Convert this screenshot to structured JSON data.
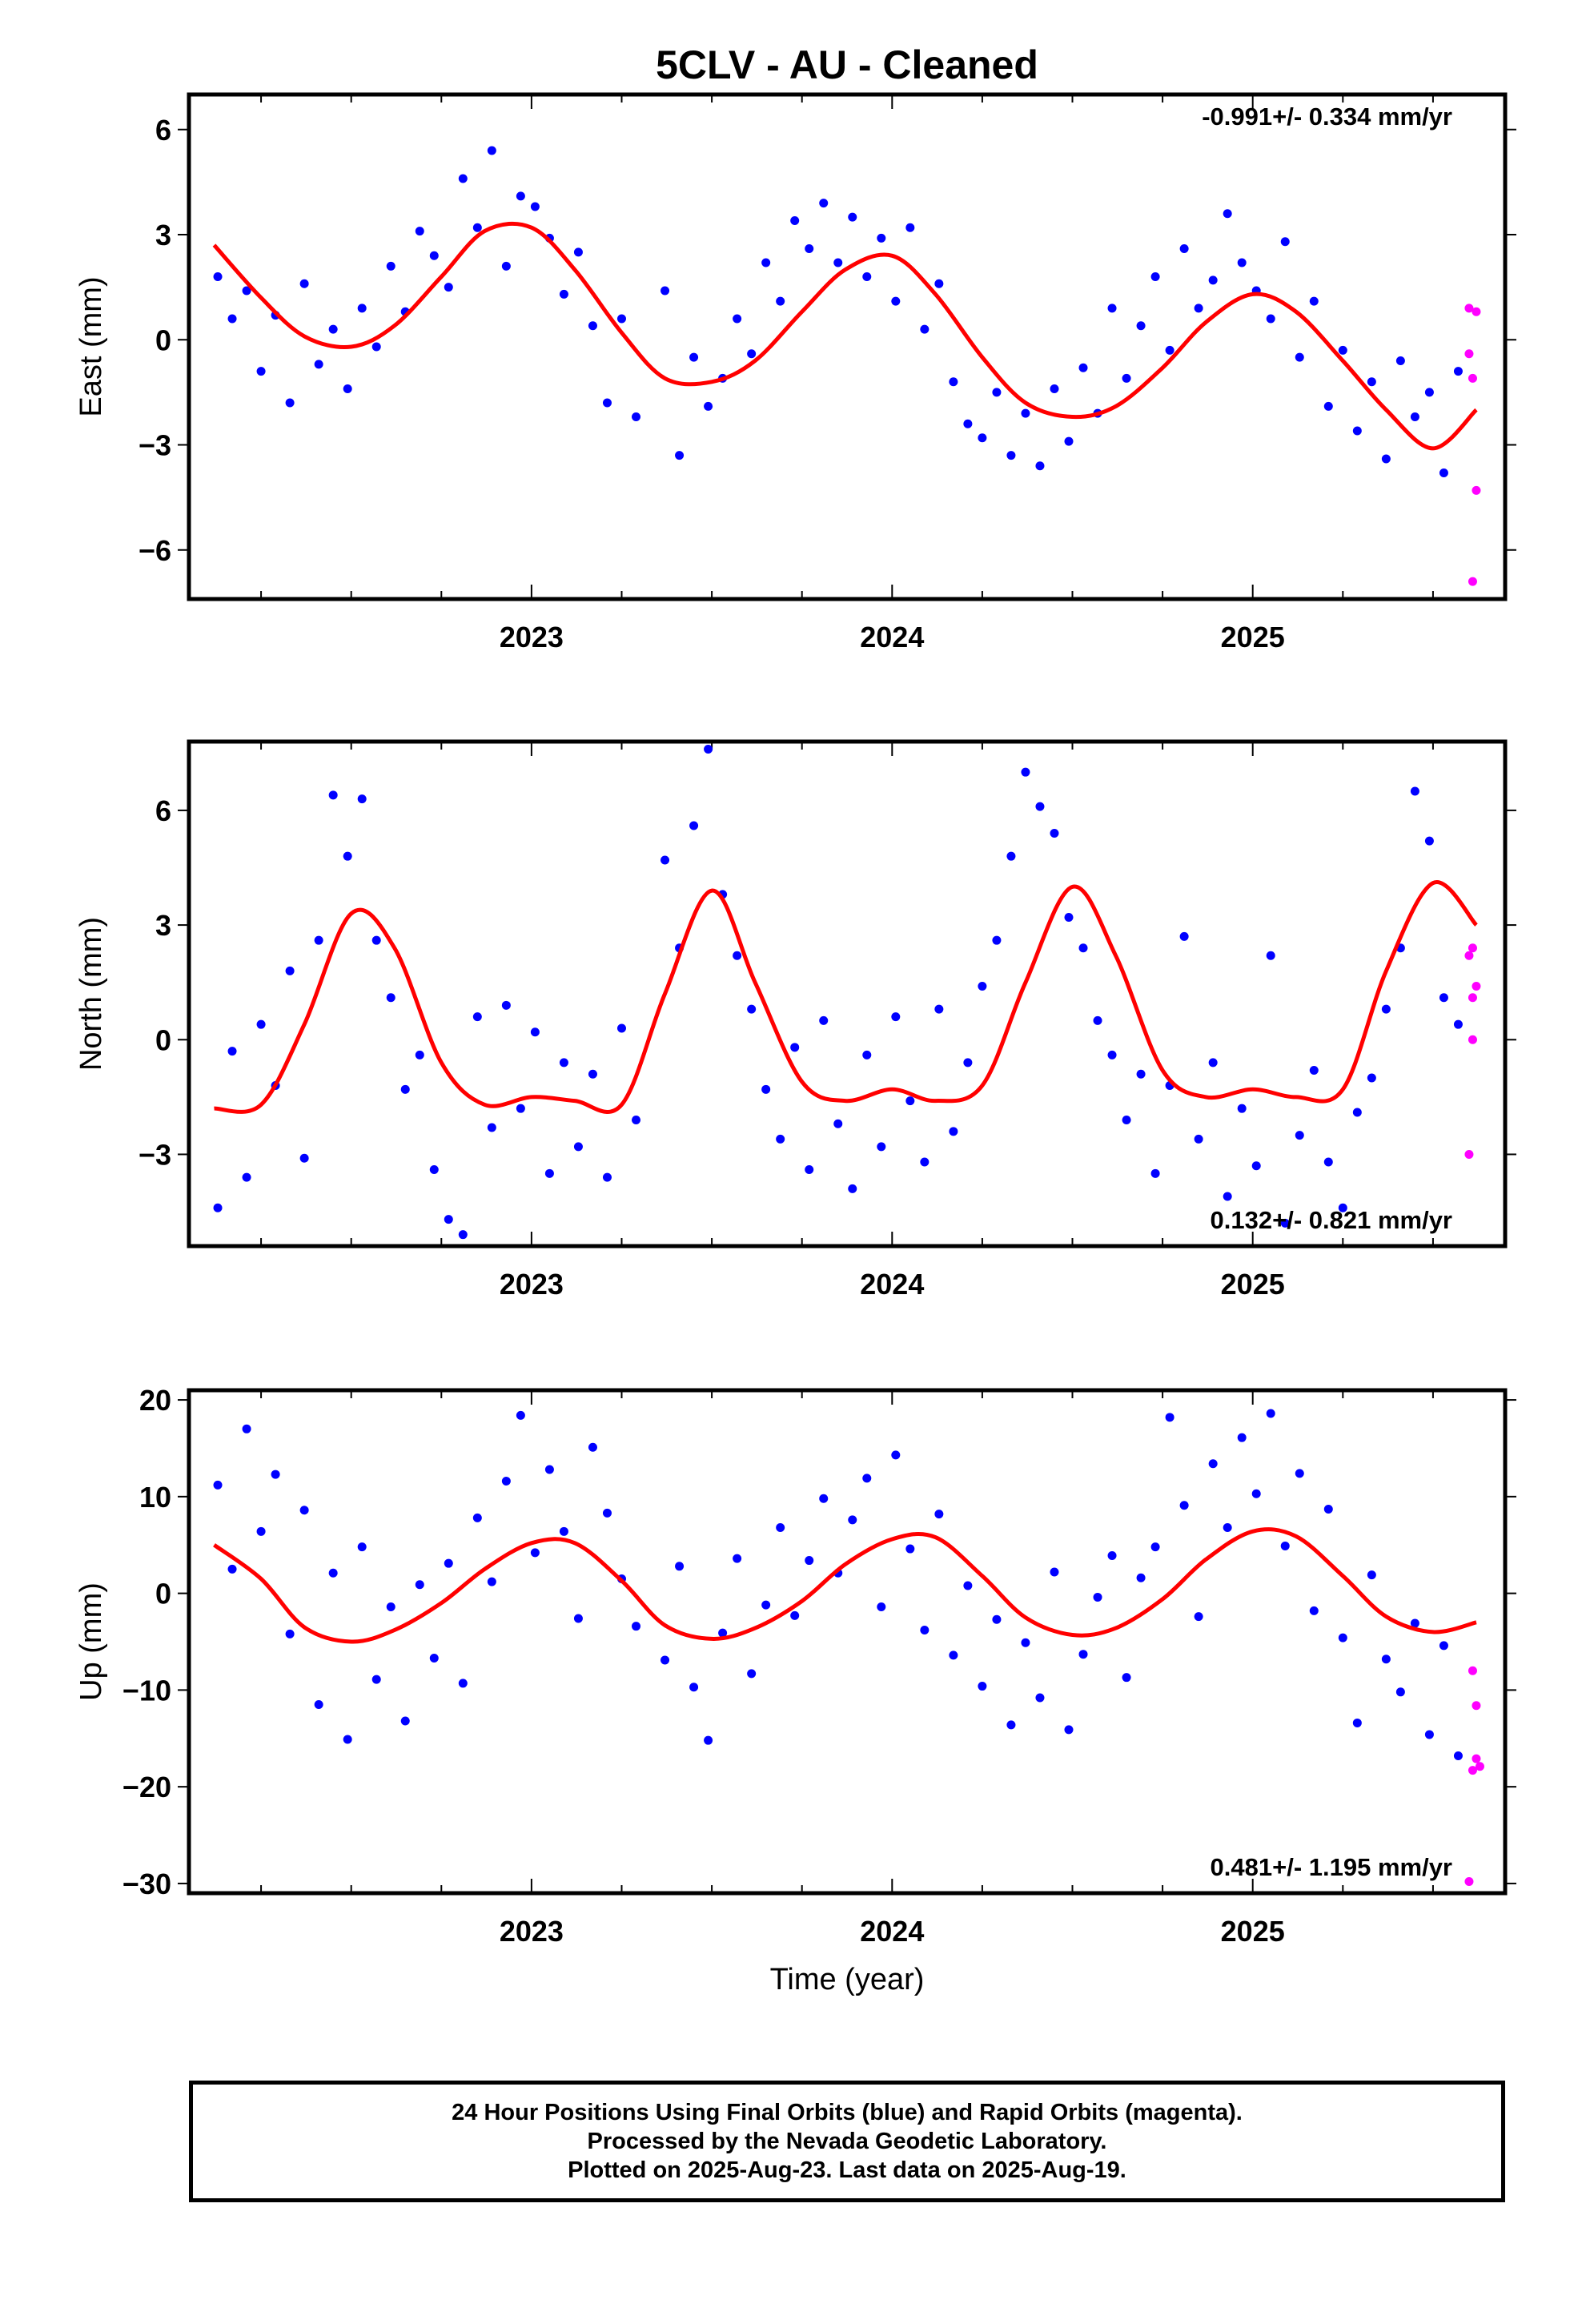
{
  "title": "5CLV  - AU - Cleaned",
  "xlabel": "Time (year)",
  "footer": [
    "24 Hour Positions Using Final Orbits (blue) and Rapid Orbits (magenta).",
    "Processed by the Nevada Geodetic Laboratory.",
    "Plotted on 2025-Aug-23. Last data on 2025-Aug-19."
  ],
  "colors": {
    "final": "#0000ff",
    "rapid": "#ff00ff",
    "fit": "#ff0000",
    "axis": "#000000"
  },
  "chart_data": [
    {
      "type": "scatter",
      "ylabel": "East (mm)",
      "xlim": [
        2022.05,
        2025.7
      ],
      "ylim": [
        -7.4,
        7.0
      ],
      "xticks": [
        2023,
        2024,
        2025
      ],
      "yticks": [
        -6,
        -3,
        0,
        3,
        6
      ],
      "rate_text": "-0.991+/- 0.334 mm/yr",
      "fit": {
        "x": [
          2022.12,
          2022.25,
          2022.37,
          2022.5,
          2022.62,
          2022.75,
          2022.87,
          2023.0,
          2023.12,
          2023.25,
          2023.37,
          2023.5,
          2023.62,
          2023.75,
          2023.87,
          2024.0,
          2024.12,
          2024.25,
          2024.37,
          2024.5,
          2024.62,
          2024.75,
          2024.87,
          2025.0,
          2025.12,
          2025.25,
          2025.37,
          2025.5,
          2025.62
        ],
        "y": [
          2.7,
          1.2,
          0.1,
          -0.2,
          0.4,
          1.8,
          3.1,
          3.2,
          2.0,
          0.2,
          -1.1,
          -1.2,
          -0.6,
          0.8,
          2.0,
          2.4,
          1.3,
          -0.5,
          -1.8,
          -2.2,
          -1.9,
          -0.8,
          0.5,
          1.3,
          0.8,
          -0.6,
          -2.0,
          -3.1,
          -2.0
        ]
      },
      "final": {
        "x": [
          2022.13,
          2022.17,
          2022.21,
          2022.25,
          2022.29,
          2022.33,
          2022.37,
          2022.41,
          2022.45,
          2022.49,
          2022.53,
          2022.57,
          2022.61,
          2022.65,
          2022.69,
          2022.73,
          2022.77,
          2022.81,
          2022.85,
          2022.89,
          2022.93,
          2022.97,
          2023.01,
          2023.05,
          2023.09,
          2023.13,
          2023.17,
          2023.21,
          2023.25,
          2023.29,
          2023.37,
          2023.41,
          2023.45,
          2023.49,
          2023.53,
          2023.57,
          2023.61,
          2023.65,
          2023.69,
          2023.73,
          2023.77,
          2023.81,
          2023.85,
          2023.89,
          2023.93,
          2023.97,
          2024.01,
          2024.05,
          2024.09,
          2024.13,
          2024.17,
          2024.21,
          2024.25,
          2024.29,
          2024.33,
          2024.37,
          2024.41,
          2024.45,
          2024.49,
          2024.53,
          2024.57,
          2024.61,
          2024.65,
          2024.69,
          2024.73,
          2024.77,
          2024.81,
          2024.85,
          2024.89,
          2024.93,
          2024.97,
          2025.01,
          2025.05,
          2025.09,
          2025.13,
          2025.17,
          2025.21,
          2025.25,
          2025.29,
          2025.33,
          2025.37,
          2025.41,
          2025.45,
          2025.49,
          2025.53,
          2025.57
        ],
        "y": [
          1.8,
          0.6,
          1.4,
          -0.9,
          0.7,
          -1.8,
          1.6,
          -0.7,
          0.3,
          -1.4,
          0.9,
          -0.2,
          2.1,
          0.8,
          3.1,
          2.4,
          1.5,
          4.6,
          3.2,
          5.4,
          2.1,
          4.1,
          3.8,
          2.9,
          1.3,
          2.5,
          0.4,
          -1.8,
          0.6,
          -2.2,
          1.4,
          -3.3,
          -0.5,
          -1.9,
          -1.1,
          0.6,
          -0.4,
          2.2,
          1.1,
          3.4,
          2.6,
          3.9,
          2.2,
          3.5,
          1.8,
          2.9,
          1.1,
          3.2,
          0.3,
          1.6,
          -1.2,
          -2.4,
          -2.8,
          -1.5,
          -3.3,
          -2.1,
          -3.6,
          -1.4,
          -2.9,
          -0.8,
          -2.1,
          0.9,
          -1.1,
          0.4,
          1.8,
          -0.3,
          2.6,
          0.9,
          1.7,
          3.6,
          2.2,
          1.4,
          0.6,
          2.8,
          -0.5,
          1.1,
          -1.9,
          -0.3,
          -2.6,
          -1.2,
          -3.4,
          -0.6,
          -2.2,
          -1.5,
          -3.8,
          -0.9
        ]
      },
      "rapid": {
        "x": [
          2025.6,
          2025.6,
          2025.61,
          2025.62,
          2025.61,
          2025.62
        ],
        "y": [
          0.9,
          -0.4,
          -1.1,
          -4.3,
          -6.9,
          0.8
        ]
      }
    },
    {
      "type": "scatter",
      "ylabel": "North (mm)",
      "xlim": [
        2022.05,
        2025.7
      ],
      "ylim": [
        -5.4,
        7.8
      ],
      "xticks": [
        2023,
        2024,
        2025
      ],
      "yticks": [
        -3,
        0,
        3,
        6
      ],
      "rate_text": "0.132+/- 0.821 mm/yr",
      "fit": {
        "x": [
          2022.12,
          2022.25,
          2022.37,
          2022.5,
          2022.62,
          2022.75,
          2022.87,
          2023.0,
          2023.12,
          2023.25,
          2023.37,
          2023.5,
          2023.62,
          2023.75,
          2023.87,
          2024.0,
          2024.12,
          2024.25,
          2024.37,
          2024.5,
          2024.62,
          2024.75,
          2024.87,
          2025.0,
          2025.12,
          2025.25,
          2025.37,
          2025.5,
          2025.62
        ],
        "y": [
          -1.8,
          -1.7,
          0.4,
          3.3,
          2.4,
          -0.6,
          -1.7,
          -1.5,
          -1.6,
          -1.7,
          1.2,
          3.9,
          1.5,
          -1.1,
          -1.6,
          -1.3,
          -1.6,
          -1.2,
          1.5,
          4.0,
          2.2,
          -0.8,
          -1.5,
          -1.3,
          -1.5,
          -1.3,
          1.8,
          4.1,
          3.0
        ]
      },
      "final": {
        "x": [
          2022.13,
          2022.17,
          2022.21,
          2022.25,
          2022.29,
          2022.33,
          2022.37,
          2022.41,
          2022.45,
          2022.49,
          2022.53,
          2022.57,
          2022.61,
          2022.65,
          2022.69,
          2022.73,
          2022.77,
          2022.81,
          2022.85,
          2022.89,
          2022.93,
          2022.97,
          2023.01,
          2023.05,
          2023.09,
          2023.13,
          2023.17,
          2023.21,
          2023.25,
          2023.29,
          2023.37,
          2023.41,
          2023.45,
          2023.49,
          2023.53,
          2023.57,
          2023.61,
          2023.65,
          2023.69,
          2023.73,
          2023.77,
          2023.81,
          2023.85,
          2023.89,
          2023.93,
          2023.97,
          2024.01,
          2024.05,
          2024.09,
          2024.13,
          2024.17,
          2024.21,
          2024.25,
          2024.29,
          2024.33,
          2024.37,
          2024.41,
          2024.45,
          2024.49,
          2024.53,
          2024.57,
          2024.61,
          2024.65,
          2024.69,
          2024.73,
          2024.77,
          2024.81,
          2024.85,
          2024.89,
          2024.93,
          2024.97,
          2025.01,
          2025.05,
          2025.09,
          2025.13,
          2025.17,
          2025.21,
          2025.25,
          2025.29,
          2025.33,
          2025.37,
          2025.41,
          2025.45,
          2025.49,
          2025.53,
          2025.57
        ],
        "y": [
          -4.4,
          -0.3,
          -3.6,
          0.4,
          -1.2,
          1.8,
          -3.1,
          2.6,
          6.4,
          4.8,
          6.3,
          2.6,
          1.1,
          -1.3,
          -0.4,
          -3.4,
          -4.7,
          -5.1,
          0.6,
          -2.3,
          0.9,
          -1.8,
          0.2,
          -3.5,
          -0.6,
          -2.8,
          -0.9,
          -3.6,
          0.3,
          -2.1,
          4.7,
          2.4,
          5.6,
          7.6,
          3.8,
          2.2,
          0.8,
          -1.3,
          -2.6,
          -0.2,
          -3.4,
          0.5,
          -2.2,
          -3.9,
          -0.4,
          -2.8,
          0.6,
          -1.6,
          -3.2,
          0.8,
          -2.4,
          -0.6,
          1.4,
          2.6,
          4.8,
          7.0,
          6.1,
          5.4,
          3.2,
          2.4,
          0.5,
          -0.4,
          -2.1,
          -0.9,
          -3.5,
          -1.2,
          2.7,
          -2.6,
          -0.6,
          -4.1,
          -1.8,
          -3.3,
          2.2,
          -4.8,
          -2.5,
          -0.8,
          -3.2,
          -4.4,
          -1.9,
          -1.0,
          0.8,
          2.4,
          6.5,
          5.2,
          1.1,
          0.4
        ]
      },
      "rapid": {
        "x": [
          2025.6,
          2025.61,
          2025.61,
          2025.6,
          2025.61,
          2025.62
        ],
        "y": [
          2.2,
          1.1,
          0.0,
          -3.0,
          2.4,
          1.4
        ]
      }
    },
    {
      "type": "scatter",
      "ylabel": "Up (mm)",
      "xlim": [
        2022.05,
        2025.7
      ],
      "ylim": [
        -31,
        21
      ],
      "xticks": [
        2023,
        2024,
        2025
      ],
      "yticks": [
        -30,
        -20,
        -10,
        0,
        10,
        20
      ],
      "rate_text": "0.481+/- 1.195 mm/yr",
      "fit": {
        "x": [
          2022.12,
          2022.25,
          2022.37,
          2022.5,
          2022.62,
          2022.75,
          2022.87,
          2023.0,
          2023.12,
          2023.25,
          2023.37,
          2023.5,
          2023.62,
          2023.75,
          2023.87,
          2024.0,
          2024.12,
          2024.25,
          2024.37,
          2024.5,
          2024.62,
          2024.75,
          2024.87,
          2025.0,
          2025.12,
          2025.25,
          2025.37,
          2025.5,
          2025.62
        ],
        "y": [
          5.0,
          1.5,
          -3.5,
          -5.0,
          -3.8,
          -1.0,
          2.5,
          5.2,
          5.2,
          1.3,
          -3.3,
          -4.7,
          -3.6,
          -0.8,
          3.0,
          5.6,
          5.8,
          1.8,
          -2.5,
          -4.3,
          -3.6,
          -0.6,
          3.5,
          6.4,
          5.9,
          1.8,
          -2.4,
          -4.0,
          -3.0
        ]
      },
      "final": {
        "x": [
          2022.13,
          2022.17,
          2022.21,
          2022.25,
          2022.29,
          2022.33,
          2022.37,
          2022.41,
          2022.45,
          2022.49,
          2022.53,
          2022.57,
          2022.61,
          2022.65,
          2022.69,
          2022.73,
          2022.77,
          2022.81,
          2022.85,
          2022.89,
          2022.93,
          2022.97,
          2023.01,
          2023.05,
          2023.09,
          2023.13,
          2023.17,
          2023.21,
          2023.25,
          2023.29,
          2023.37,
          2023.41,
          2023.45,
          2023.49,
          2023.53,
          2023.57,
          2023.61,
          2023.65,
          2023.69,
          2023.73,
          2023.77,
          2023.81,
          2023.85,
          2023.89,
          2023.93,
          2023.97,
          2024.01,
          2024.05,
          2024.09,
          2024.13,
          2024.17,
          2024.21,
          2024.25,
          2024.29,
          2024.33,
          2024.37,
          2024.41,
          2024.45,
          2024.49,
          2024.53,
          2024.57,
          2024.61,
          2024.65,
          2024.69,
          2024.73,
          2024.77,
          2024.81,
          2024.85,
          2024.89,
          2024.93,
          2024.97,
          2025.01,
          2025.05,
          2025.09,
          2025.13,
          2025.17,
          2025.21,
          2025.25,
          2025.29,
          2025.33,
          2025.37,
          2025.41,
          2025.45,
          2025.49,
          2025.53,
          2025.57
        ],
        "y": [
          11.2,
          2.5,
          17.0,
          6.4,
          12.3,
          -4.2,
          8.6,
          -11.5,
          2.1,
          -15.1,
          4.8,
          -8.9,
          -1.4,
          -13.2,
          0.9,
          -6.7,
          3.1,
          -9.3,
          7.8,
          1.2,
          11.6,
          18.4,
          4.2,
          12.8,
          6.4,
          -2.6,
          15.1,
          8.3,
          1.5,
          -3.4,
          -6.9,
          2.8,
          -9.7,
          -15.2,
          -4.1,
          3.6,
          -8.3,
          -1.2,
          6.8,
          -2.3,
          3.4,
          9.8,
          2.1,
          7.6,
          11.9,
          -1.4,
          14.3,
          4.6,
          -3.8,
          8.2,
          -6.4,
          0.8,
          -9.6,
          -2.7,
          -13.6,
          -5.1,
          -10.8,
          2.2,
          -14.1,
          -6.3,
          -0.4,
          3.9,
          -8.7,
          1.6,
          4.8,
          18.2,
          9.1,
          -2.4,
          13.4,
          6.8,
          16.1,
          10.3,
          18.6,
          4.9,
          12.4,
          -1.8,
          8.7,
          -4.6,
          -13.4,
          1.9,
          -6.8,
          -10.2,
          -3.1,
          -14.6,
          -5.4,
          -16.8
        ]
      },
      "rapid": {
        "x": [
          2025.61,
          2025.62,
          2025.62,
          2025.63,
          2025.61,
          2025.6
        ],
        "y": [
          -8.0,
          -11.6,
          -17.1,
          -17.9,
          -18.3,
          -29.8
        ]
      }
    }
  ]
}
